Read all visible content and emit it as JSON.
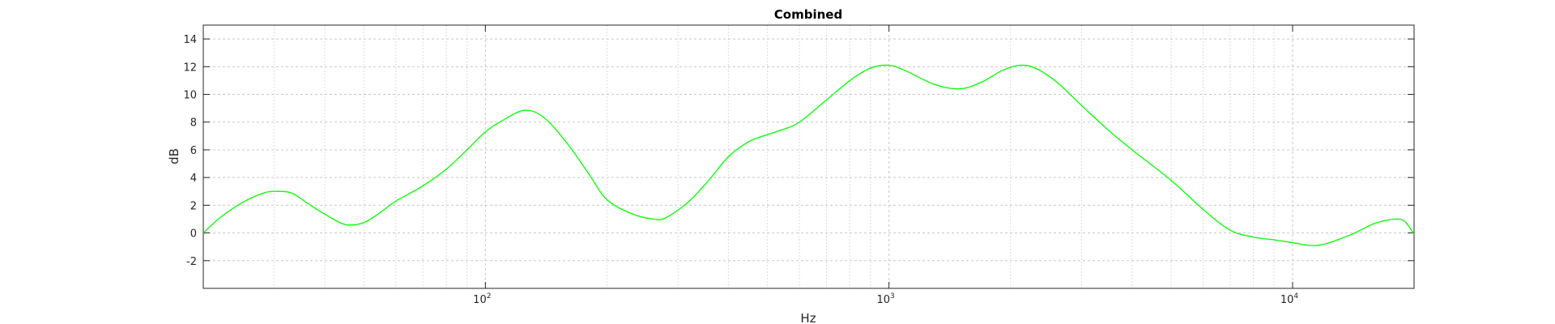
{
  "chart_data": {
    "type": "line",
    "title": "Combined",
    "xlabel": "Hz",
    "ylabel": "dB",
    "x_scale": "log",
    "xlim": [
      20,
      20000
    ],
    "ylim": [
      -4,
      15
    ],
    "grid": true,
    "minor_grid": true,
    "x_ticks": [
      {
        "value": 100,
        "base": "10",
        "exp": "2"
      },
      {
        "value": 1000,
        "base": "10",
        "exp": "3"
      },
      {
        "value": 10000,
        "base": "10",
        "exp": "4"
      }
    ],
    "y_ticks": [
      {
        "value": -2,
        "label": "-2"
      },
      {
        "value": 0,
        "label": "0"
      },
      {
        "value": 2,
        "label": "2"
      },
      {
        "value": 4,
        "label": "4"
      },
      {
        "value": 6,
        "label": "6"
      },
      {
        "value": 8,
        "label": "8"
      },
      {
        "value": 10,
        "label": "10"
      },
      {
        "value": 12,
        "label": "12"
      },
      {
        "value": 14,
        "label": "14"
      }
    ],
    "series": [
      {
        "color": "#00ff00",
        "x": [
          20,
          22,
          25,
          28,
          30,
          33,
          36,
          40,
          45,
          50,
          55,
          60,
          70,
          80,
          90,
          100,
          110,
          125,
          140,
          160,
          180,
          200,
          230,
          260,
          280,
          320,
          360,
          400,
          450,
          500,
          550,
          600,
          700,
          800,
          900,
          1000,
          1100,
          1300,
          1500,
          1700,
          1900,
          2100,
          2300,
          2600,
          3000,
          3500,
          4000,
          5000,
          6000,
          7000,
          8000,
          9000,
          10000,
          11000,
          12000,
          14000,
          16000,
          18000,
          19000,
          20000
        ],
        "y": [
          0,
          1.1,
          2.2,
          2.85,
          3.0,
          2.9,
          2.2,
          1.35,
          0.6,
          0.75,
          1.5,
          2.3,
          3.4,
          4.6,
          6.0,
          7.3,
          8.1,
          8.85,
          8.3,
          6.4,
          4.3,
          2.4,
          1.4,
          1.0,
          1.1,
          2.3,
          3.9,
          5.5,
          6.6,
          7.1,
          7.5,
          8.0,
          9.6,
          11.0,
          11.9,
          12.1,
          11.7,
          10.7,
          10.4,
          10.9,
          11.7,
          12.1,
          11.9,
          10.9,
          9.2,
          7.4,
          6.0,
          3.8,
          1.7,
          0.2,
          -0.3,
          -0.5,
          -0.7,
          -0.9,
          -0.8,
          -0.1,
          0.7,
          1.0,
          0.8,
          -0.1
        ]
      }
    ]
  }
}
